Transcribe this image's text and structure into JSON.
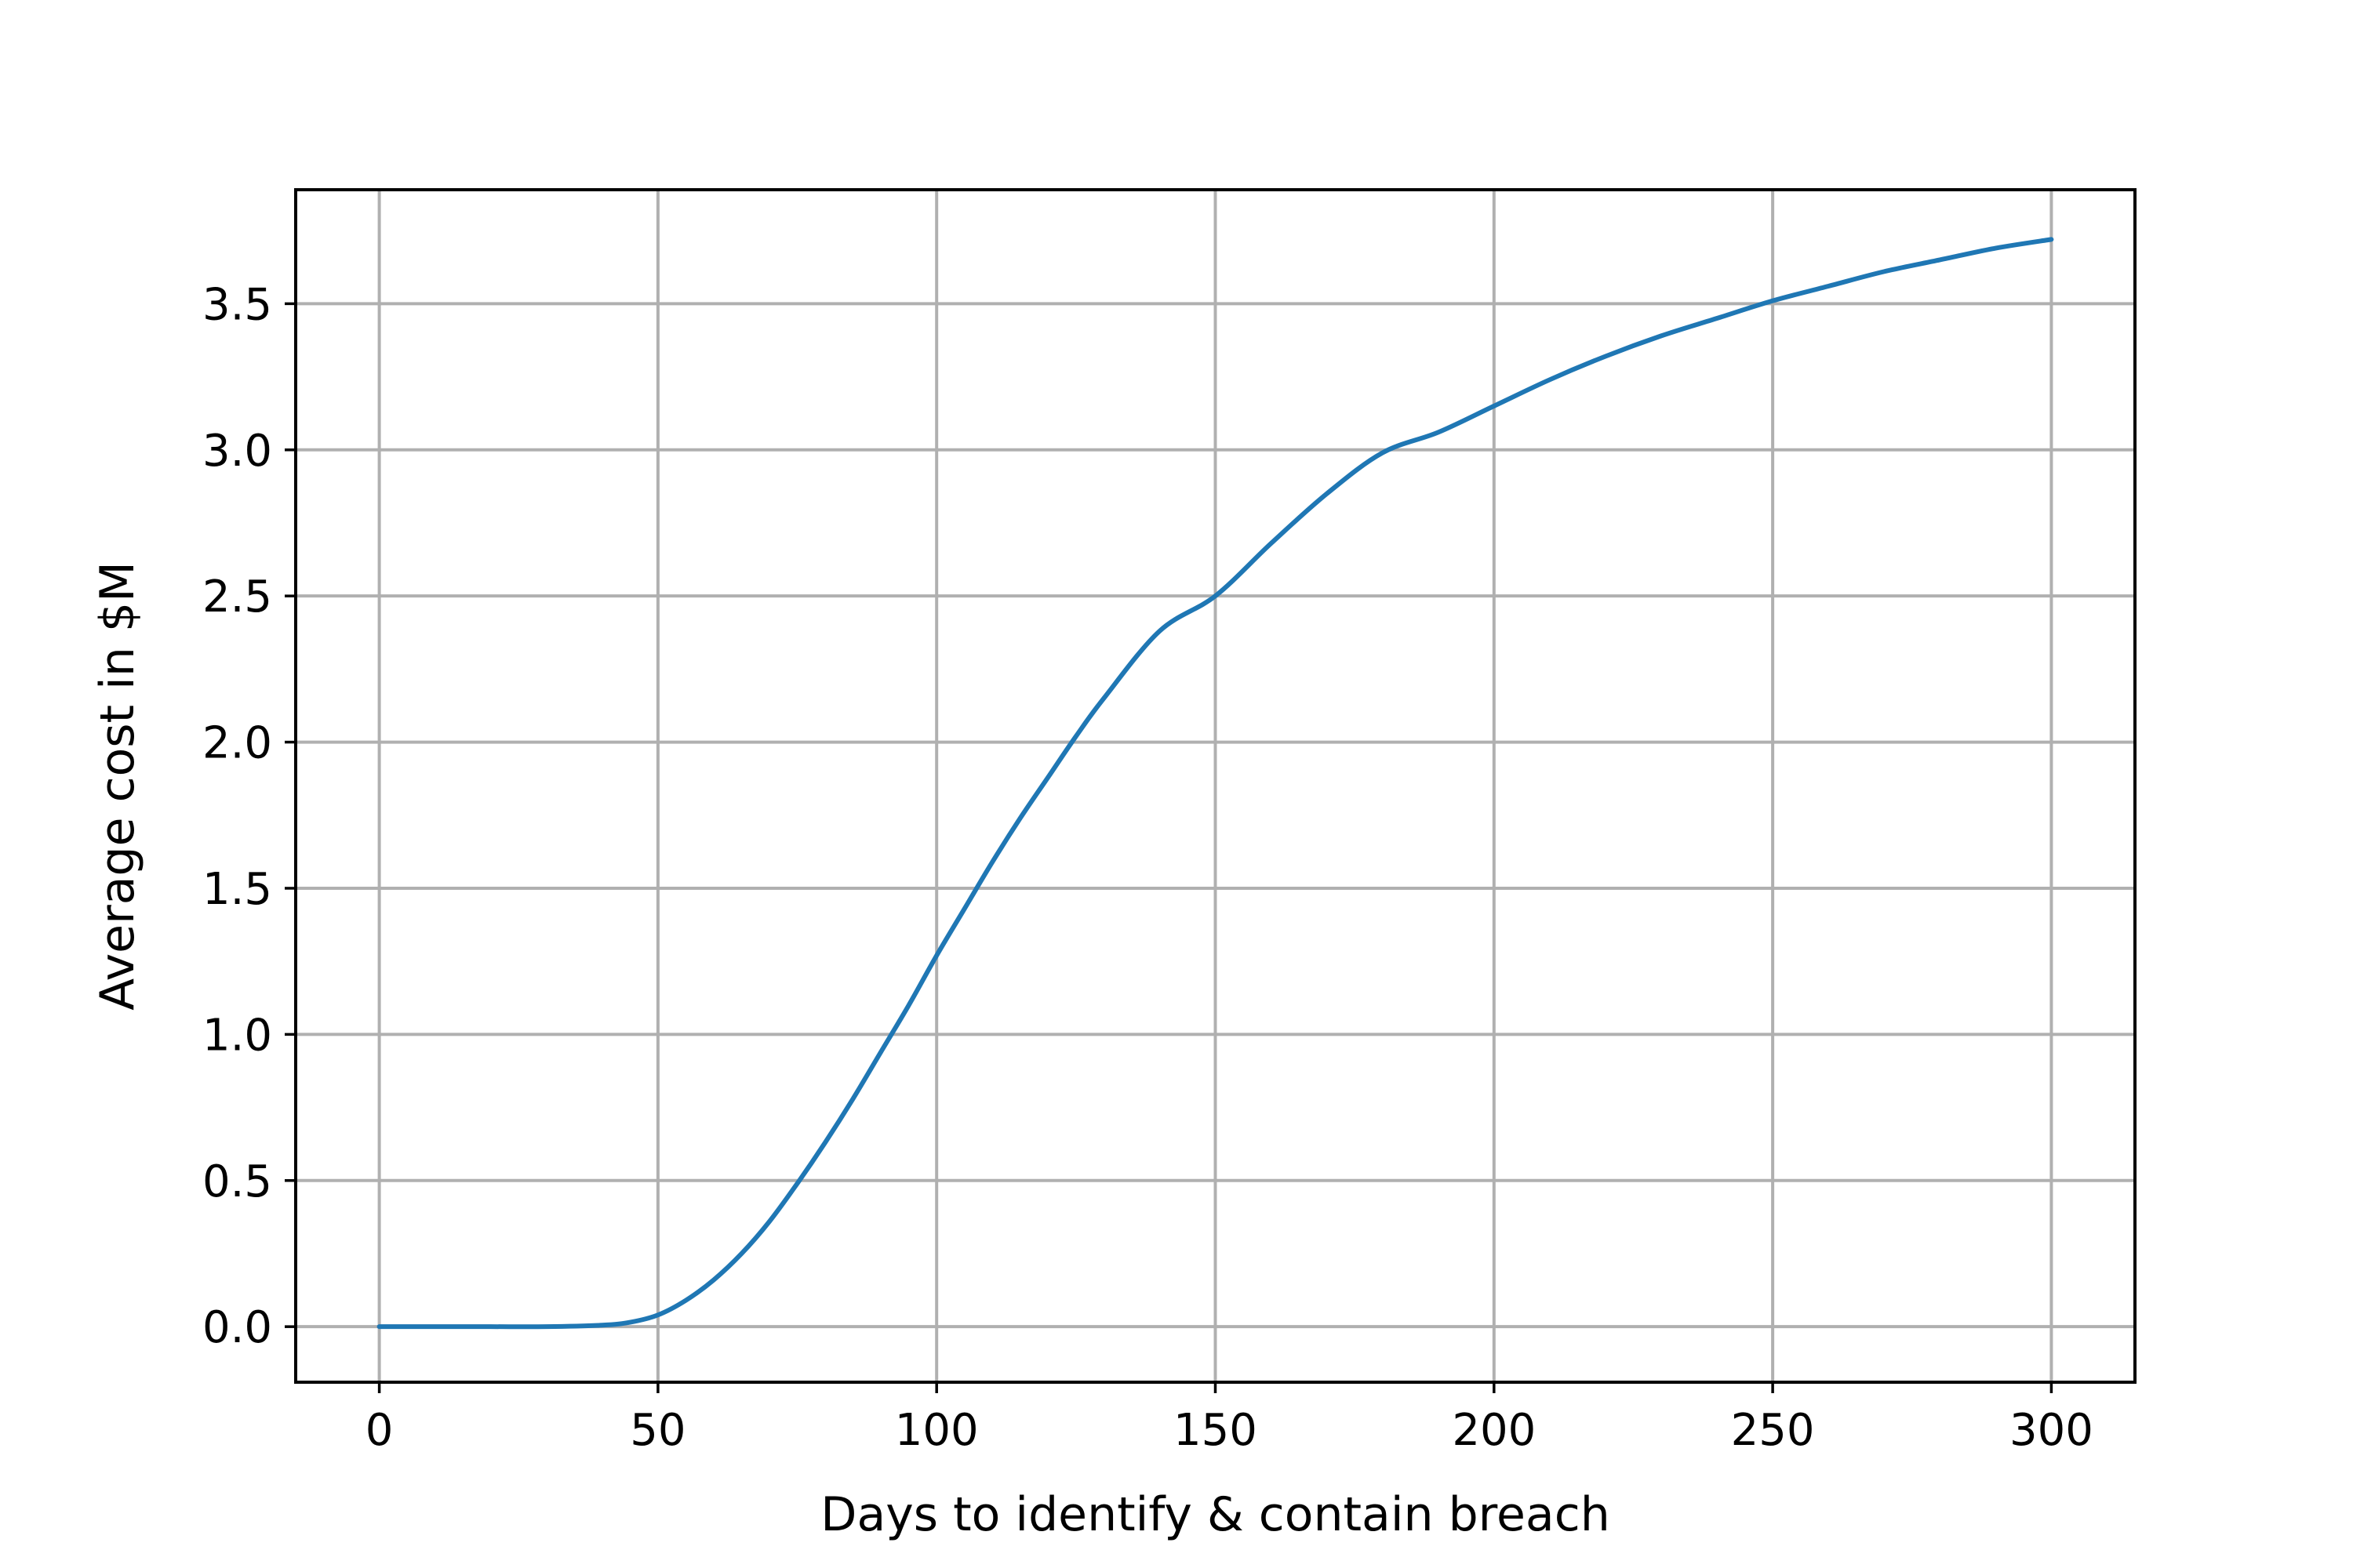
{
  "chart_data": {
    "type": "line",
    "title": "",
    "xlabel": "Days to identify & contain breach",
    "ylabel": "Average cost in $M",
    "xlim": [
      -15,
      315
    ],
    "ylim": [
      -0.19,
      3.89
    ],
    "x_ticks": [
      0,
      50,
      100,
      150,
      200,
      250,
      300
    ],
    "x_tick_labels": [
      "0",
      "50",
      "100",
      "150",
      "200",
      "250",
      "300"
    ],
    "y_ticks": [
      0.0,
      0.5,
      1.0,
      1.5,
      2.0,
      2.5,
      3.0,
      3.5
    ],
    "y_tick_labels": [
      "0.0",
      "0.5",
      "1.0",
      "1.5",
      "2.0",
      "2.5",
      "3.0",
      "3.5"
    ],
    "grid": true,
    "series": [
      {
        "color": "#1f77b4",
        "x": [
          0,
          10,
          20,
          30,
          40,
          45,
          50,
          55,
          60,
          65,
          70,
          75,
          80,
          85,
          90,
          95,
          100,
          105,
          110,
          115,
          120,
          125,
          130,
          140,
          150,
          160,
          170,
          180,
          190,
          200,
          210,
          220,
          230,
          240,
          250,
          260,
          270,
          280,
          290,
          300
        ],
        "y": [
          0.0,
          0.0,
          0.0,
          0.0,
          0.005,
          0.015,
          0.04,
          0.09,
          0.16,
          0.25,
          0.36,
          0.49,
          0.63,
          0.78,
          0.94,
          1.1,
          1.27,
          1.43,
          1.59,
          1.74,
          1.88,
          2.02,
          2.15,
          2.38,
          2.5,
          2.68,
          2.85,
          2.99,
          3.06,
          3.15,
          3.24,
          3.32,
          3.39,
          3.45,
          3.51,
          3.56,
          3.61,
          3.65,
          3.69,
          3.72
        ]
      }
    ]
  }
}
